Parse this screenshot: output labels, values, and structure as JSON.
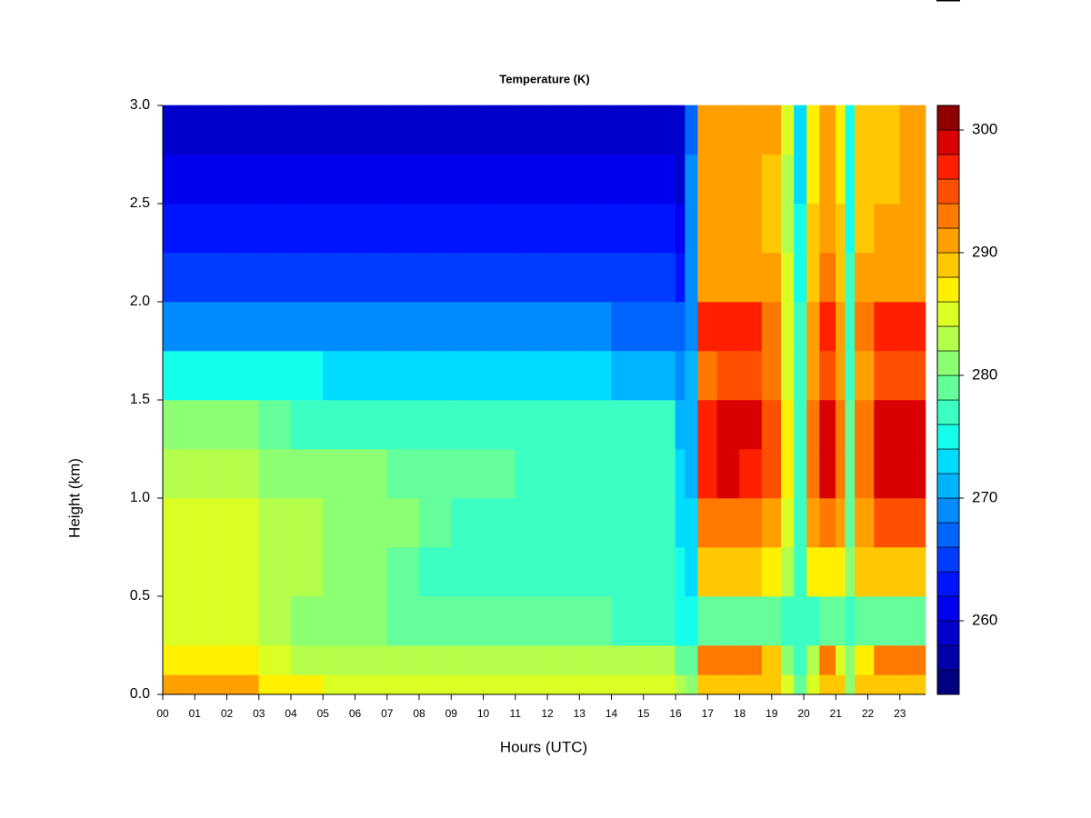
{
  "chart_data": {
    "type": "heatmap",
    "title": "Temperature (K)",
    "xlabel": "Hours (UTC)",
    "ylabel": "Height (km)",
    "xlim": [
      0,
      23.8
    ],
    "ylim": [
      0,
      3
    ],
    "xticks": [
      {
        "value": 0,
        "label": "00"
      },
      {
        "value": 1,
        "label": "01"
      },
      {
        "value": 2,
        "label": "02"
      },
      {
        "value": 3,
        "label": "03"
      },
      {
        "value": 4,
        "label": "04"
      },
      {
        "value": 5,
        "label": "05"
      },
      {
        "value": 6,
        "label": "06"
      },
      {
        "value": 7,
        "label": "07"
      },
      {
        "value": 8,
        "label": "08"
      },
      {
        "value": 9,
        "label": "09"
      },
      {
        "value": 10,
        "label": "10"
      },
      {
        "value": 11,
        "label": "11"
      },
      {
        "value": 12,
        "label": "12"
      },
      {
        "value": 13,
        "label": "13"
      },
      {
        "value": 14,
        "label": "14"
      },
      {
        "value": 15,
        "label": "15"
      },
      {
        "value": 16,
        "label": "16"
      },
      {
        "value": 17,
        "label": "17"
      },
      {
        "value": 18,
        "label": "18"
      },
      {
        "value": 19,
        "label": "19"
      },
      {
        "value": 20,
        "label": "20"
      },
      {
        "value": 21,
        "label": "21"
      },
      {
        "value": 22,
        "label": "22"
      },
      {
        "value": 23,
        "label": "23"
      }
    ],
    "yticks": [
      {
        "value": 0,
        "label": "0.0"
      },
      {
        "value": 0.5,
        "label": "0.5"
      },
      {
        "value": 1,
        "label": "1.0"
      },
      {
        "value": 1.5,
        "label": "1.5"
      },
      {
        "value": 2,
        "label": "2.0"
      },
      {
        "value": 2.5,
        "label": "2.5"
      },
      {
        "value": 3,
        "label": "3.0"
      }
    ],
    "x": [
      0,
      1,
      2,
      3,
      4,
      5,
      6,
      7,
      8,
      9,
      10,
      11,
      12,
      13,
      14,
      15,
      16,
      16.3,
      16.7,
      17.3,
      18,
      18.7,
      19.3,
      19.7,
      20.1,
      20.5,
      21,
      21.3,
      21.6,
      22.2,
      23,
      23.8
    ],
    "y": [
      0,
      0.1,
      0.25,
      0.5,
      0.75,
      1,
      1.25,
      1.5,
      1.75,
      2,
      2.25,
      2.5,
      2.75,
      3
    ],
    "z": [
      [
        290,
        290,
        290,
        287,
        286,
        284,
        284,
        284,
        284,
        284,
        284,
        284,
        284,
        284,
        285,
        285,
        282,
        280,
        288,
        288,
        288,
        288,
        284,
        278,
        284,
        288,
        288,
        280,
        288,
        288,
        288
      ],
      [
        287,
        287,
        287,
        285,
        283,
        282,
        282,
        282,
        282,
        282,
        282,
        282,
        282,
        282,
        282,
        282,
        279,
        278,
        292,
        292,
        292,
        288,
        280,
        277,
        282,
        292,
        285,
        280,
        286,
        292,
        292
      ],
      [
        285,
        285,
        285,
        283,
        281,
        280,
        280,
        278,
        278,
        278,
        278,
        278,
        278,
        278,
        277,
        277,
        275,
        275,
        279,
        279,
        279,
        279,
        277,
        276,
        277,
        279,
        278,
        277,
        278,
        279,
        279
      ],
      [
        285,
        285,
        285,
        283,
        282,
        280,
        280,
        278,
        277,
        277,
        277,
        277,
        277,
        277,
        277,
        277,
        274,
        273,
        288,
        288,
        288,
        287,
        282,
        276,
        286,
        286,
        286,
        280,
        288,
        288,
        288
      ],
      [
        284,
        284,
        284,
        282,
        282,
        281,
        280,
        280,
        278,
        277,
        277,
        277,
        277,
        277,
        277,
        277,
        273,
        272,
        292,
        292,
        292,
        290,
        284,
        276,
        290,
        292,
        290,
        278,
        290,
        294,
        294
      ],
      [
        283,
        283,
        283,
        281,
        281,
        281,
        280,
        279,
        279,
        279,
        278,
        277,
        277,
        277,
        277,
        277,
        272,
        271,
        296,
        298,
        297,
        294,
        286,
        277,
        292,
        298,
        292,
        278,
        292,
        298,
        298
      ],
      [
        280,
        280,
        280,
        278,
        277,
        277,
        277,
        277,
        277,
        277,
        276,
        276,
        276,
        276,
        276,
        276,
        271,
        270,
        296,
        298,
        298,
        294,
        286,
        277,
        292,
        298,
        292,
        278,
        292,
        298,
        298
      ],
      [
        274,
        274,
        274,
        274,
        274,
        273,
        273,
        273,
        273,
        273,
        273,
        273,
        272,
        272,
        271,
        271,
        268,
        270,
        293,
        294,
        294,
        292,
        284,
        276,
        290,
        294,
        290,
        277,
        290,
        294,
        294
      ],
      [
        269,
        269,
        269,
        269,
        269,
        269,
        269,
        269,
        269,
        269,
        268,
        268,
        268,
        268,
        267,
        267,
        266,
        269,
        296,
        296,
        296,
        293,
        284,
        276,
        290,
        296,
        290,
        277,
        292,
        296,
        296
      ],
      [
        265,
        265,
        265,
        265,
        265,
        265,
        265,
        265,
        265,
        265,
        265,
        265,
        265,
        265,
        265,
        265,
        263,
        268,
        290,
        291,
        291,
        290,
        284,
        274,
        288,
        292,
        288,
        276,
        290,
        291,
        291
      ],
      [
        262,
        262,
        262,
        262,
        262,
        262,
        262,
        262,
        262,
        262,
        262,
        262,
        262,
        262,
        262,
        262,
        261,
        268,
        290,
        290,
        290,
        289,
        283,
        274,
        288,
        290,
        288,
        275,
        289,
        290,
        290
      ],
      [
        260,
        260,
        260,
        260,
        260,
        260,
        260,
        260,
        260,
        260,
        260,
        260,
        260,
        260,
        260,
        260,
        259,
        268,
        290,
        290,
        290,
        289,
        283,
        273,
        287,
        290,
        287,
        274,
        288,
        289,
        290
      ],
      [
        258,
        258,
        258,
        258,
        258,
        258,
        258,
        258,
        258,
        258,
        258,
        258,
        258,
        258,
        258,
        258,
        258,
        267,
        291,
        291,
        291,
        290,
        284,
        272,
        286,
        290,
        286,
        274,
        288,
        289,
        290
      ]
    ],
    "clim": [
      254,
      302
    ],
    "colorbar_ticks": [
      260,
      270,
      280,
      290,
      300
    ],
    "colors": [
      "#000080",
      "#0000A8",
      "#0000CC",
      "#0000EE",
      "#0014FF",
      "#003CFF",
      "#0064FF",
      "#008CFF",
      "#00B4FF",
      "#00DCFF",
      "#14FFEB",
      "#3CFFC3",
      "#64FF9B",
      "#8CFF73",
      "#B4FF4B",
      "#DCFF23",
      "#FFF000",
      "#FFC800",
      "#FFA000",
      "#FF7800",
      "#FF5000",
      "#FF2000",
      "#D80000",
      "#900000"
    ]
  }
}
